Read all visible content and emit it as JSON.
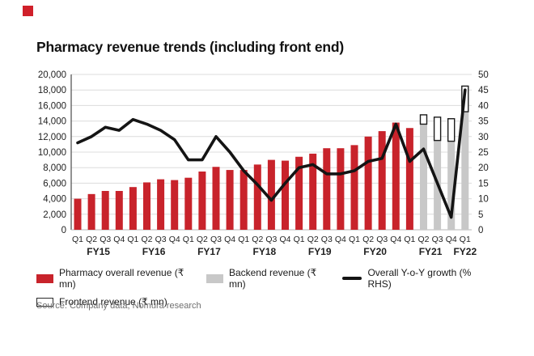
{
  "page": {
    "title": "Pharmacy revenue trends (including front end)",
    "source": "Source: Company data, Nomura research"
  },
  "colors": {
    "accent_square": "#d0202a",
    "pharmacy_red": "#c8232b",
    "backend_gray": "#c8c8c8",
    "growth_line": "#141414",
    "gridline": "#dcdcdc"
  },
  "legend": {
    "pharmacy": "Pharmacy overall revenue (₹ mn)",
    "backend": "Backend revenue (₹ mn)",
    "growth": "Overall Y-o-Y growth (% RHS)",
    "frontend": "Frontend revenue (₹ mn)"
  },
  "chart_data": {
    "type": "bar+line",
    "title": "Pharmacy revenue trends (including front end)",
    "quarters": [
      "Q1",
      "Q2",
      "Q3",
      "Q4",
      "Q1",
      "Q2",
      "Q3",
      "Q4",
      "Q1",
      "Q2",
      "Q3",
      "Q4",
      "Q1",
      "Q2",
      "Q3",
      "Q4",
      "Q1",
      "Q2",
      "Q3",
      "Q4",
      "Q1",
      "Q2",
      "Q3",
      "Q4",
      "Q1",
      "Q2",
      "Q3",
      "Q4",
      "Q1"
    ],
    "fy_groups": [
      {
        "label": "FY15",
        "start": 0,
        "count": 4
      },
      {
        "label": "FY16",
        "start": 4,
        "count": 4
      },
      {
        "label": "FY17",
        "start": 8,
        "count": 4
      },
      {
        "label": "FY18",
        "start": 12,
        "count": 4
      },
      {
        "label": "FY19",
        "start": 16,
        "count": 4
      },
      {
        "label": "FY20",
        "start": 20,
        "count": 4
      },
      {
        "label": "FY21",
        "start": 24,
        "count": 4
      },
      {
        "label": "FY22",
        "start": 28,
        "count": 1
      }
    ],
    "left_axis": {
      "min": 0,
      "max": 20000,
      "step": 2000,
      "tick_labels": [
        "20,000",
        "18,000",
        "16,000",
        "14,000",
        "12,000",
        "10,000",
        "8,000",
        "6,000",
        "4,000",
        "2,000",
        "0"
      ]
    },
    "right_axis": {
      "min": 0,
      "max": 50,
      "step": 5,
      "tick_labels": [
        "50",
        "45",
        "40",
        "35",
        "30",
        "25",
        "20",
        "15",
        "10",
        "5",
        "0"
      ]
    },
    "series": [
      {
        "name": "Pharmacy overall revenue (₹ mn)",
        "type": "bar",
        "color_key": "pharmacy_red",
        "values": [
          4000,
          4600,
          5000,
          5000,
          5500,
          6100,
          6500,
          6400,
          6700,
          7500,
          8100,
          7700,
          7700,
          8400,
          9000,
          8900,
          9400,
          9800,
          10500,
          10500,
          10900,
          12000,
          12700,
          13800,
          13100,
          null,
          null,
          null,
          null
        ]
      },
      {
        "name": "Backend revenue (₹ mn)",
        "type": "bar",
        "color_key": "backend_gray",
        "values": [
          null,
          null,
          null,
          null,
          null,
          null,
          null,
          null,
          null,
          null,
          null,
          null,
          null,
          null,
          null,
          null,
          null,
          null,
          null,
          null,
          null,
          null,
          null,
          null,
          null,
          13600,
          11500,
          11400,
          15200
        ]
      },
      {
        "name": "Frontend revenue (₹ mn)",
        "type": "bar-outline",
        "stack_on": 1,
        "values": [
          null,
          null,
          null,
          null,
          null,
          null,
          null,
          null,
          null,
          null,
          null,
          null,
          null,
          null,
          null,
          null,
          null,
          null,
          null,
          null,
          null,
          null,
          null,
          null,
          null,
          1200,
          3000,
          2900,
          3300
        ]
      },
      {
        "name": "Overall Y-o-Y growth (% RHS)",
        "type": "line",
        "axis": "right",
        "color_key": "growth_line",
        "values": [
          28,
          30,
          33,
          32,
          35.5,
          34,
          32,
          29,
          22.5,
          22.5,
          30,
          25,
          19,
          14.5,
          9.5,
          15,
          20,
          21,
          18,
          18,
          19,
          22,
          23,
          34,
          22,
          26,
          15,
          4,
          45
        ]
      }
    ],
    "legend_position": "bottom",
    "grid": true
  }
}
